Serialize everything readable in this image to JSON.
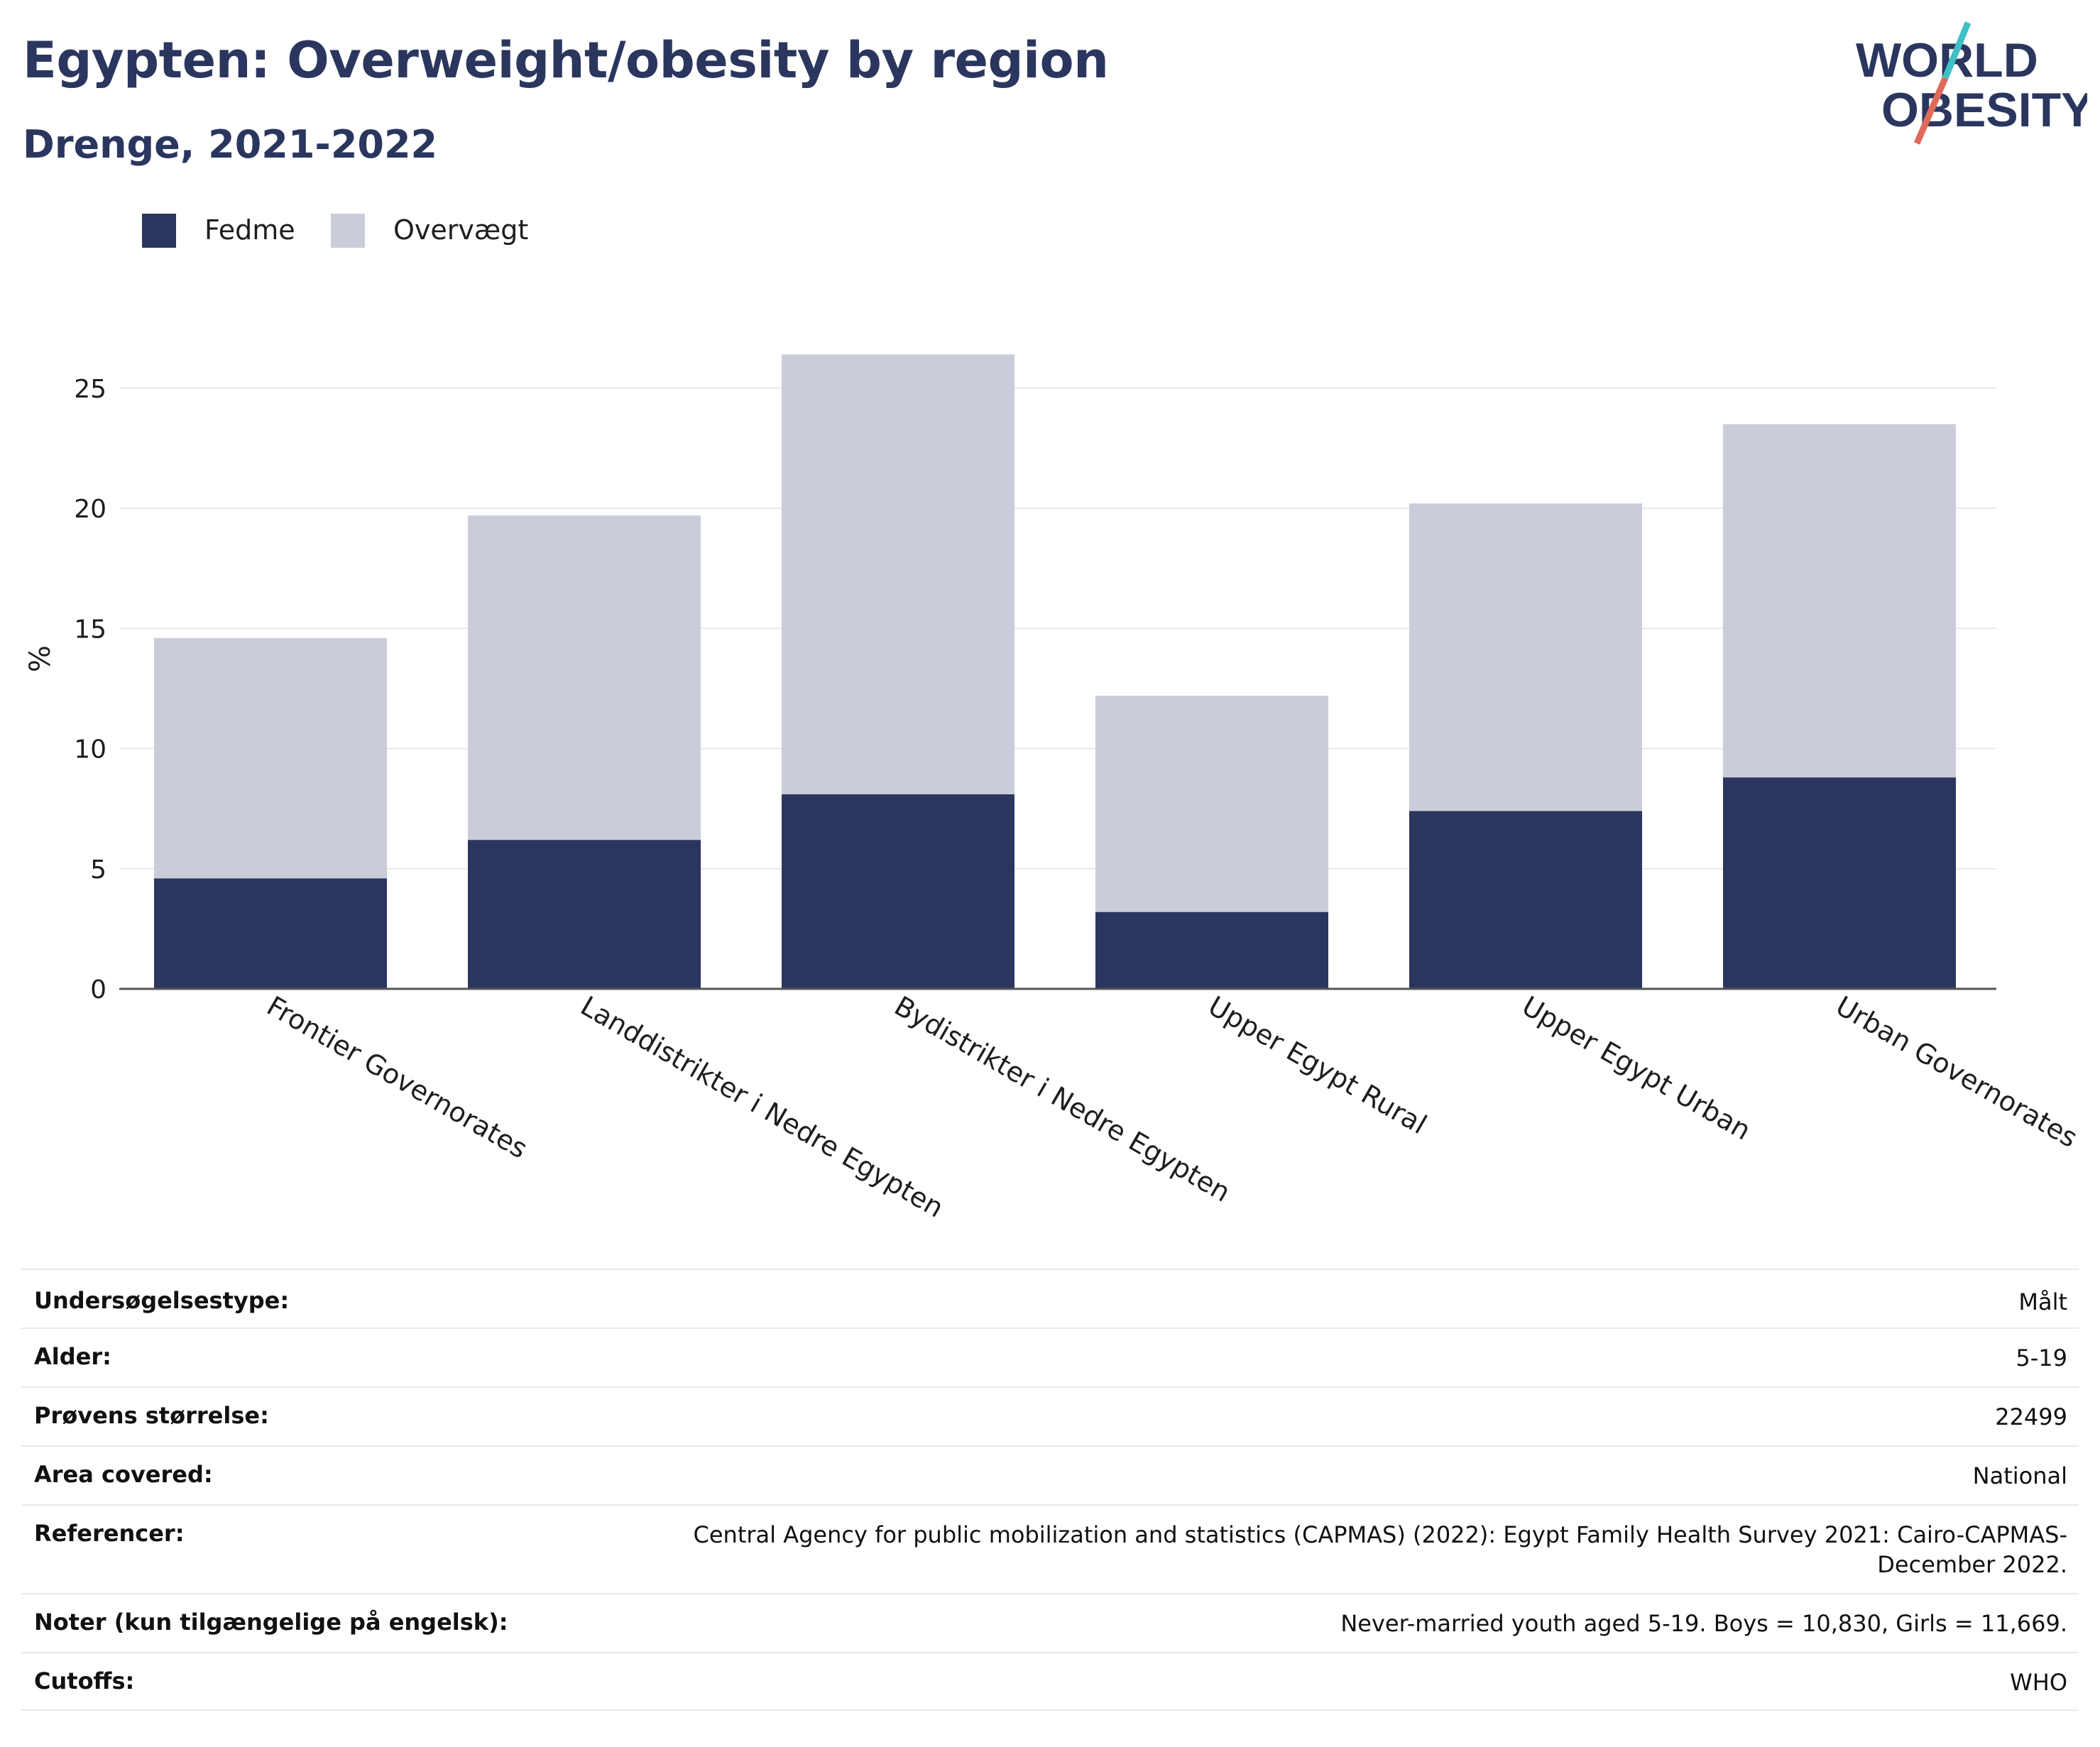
{
  "header": {
    "title": "Egypten: Overweight/obesity by region",
    "subtitle": "Drenge, 2021-2022"
  },
  "logo": {
    "line1": "WORLD",
    "line2": "OBESITY",
    "colors": {
      "text": "#2b365f",
      "slash_top": "#3fbfc6",
      "slash_bottom": "#e06a5a"
    }
  },
  "legend": {
    "items": [
      {
        "label": "Fedme",
        "color": "#2b365f"
      },
      {
        "label": "Overvægt",
        "color": "#cacdd9"
      }
    ]
  },
  "chart_data": {
    "type": "bar",
    "stacked": true,
    "categories": [
      "Frontier Governorates",
      "Landdistrikter i Nedre Egypten",
      "Bydistrikter i Nedre Egypten",
      "Upper Egypt Rural",
      "Upper Egypt Urban",
      "Urban Governorates"
    ],
    "series": [
      {
        "name": "Fedme",
        "color": "#2b365f",
        "values": [
          4.6,
          6.2,
          8.1,
          3.2,
          7.4,
          8.8
        ]
      },
      {
        "name": "Overvægt",
        "color": "#cacdd9",
        "values": [
          10.0,
          13.5,
          18.3,
          9.0,
          12.8,
          14.7
        ]
      }
    ],
    "ylabel": "%",
    "xlabel": "",
    "ylim": [
      0,
      27.5
    ],
    "yticks": [
      0,
      5,
      10,
      15,
      20,
      25
    ],
    "grid": true,
    "legend_position": "top-left"
  },
  "info": {
    "rows": [
      {
        "key": "Undersøgelsestype:",
        "value": "Målt"
      },
      {
        "key": "Alder:",
        "value": "5-19"
      },
      {
        "key": "Prøvens størrelse:",
        "value": "22499"
      },
      {
        "key": "Area covered:",
        "value": "National"
      },
      {
        "key": "Referencer:",
        "value": "Central Agency for public mobilization and statistics (CAPMAS) (2022): Egypt Family Health Survey 2021: Cairo-CAPMAS-December 2022."
      },
      {
        "key": "Noter (kun tilgængelige på engelsk):",
        "value": "Never-married youth aged 5-19. Boys = 10,830, Girls = 11,669."
      },
      {
        "key": "Cutoffs:",
        "value": "WHO"
      }
    ]
  }
}
